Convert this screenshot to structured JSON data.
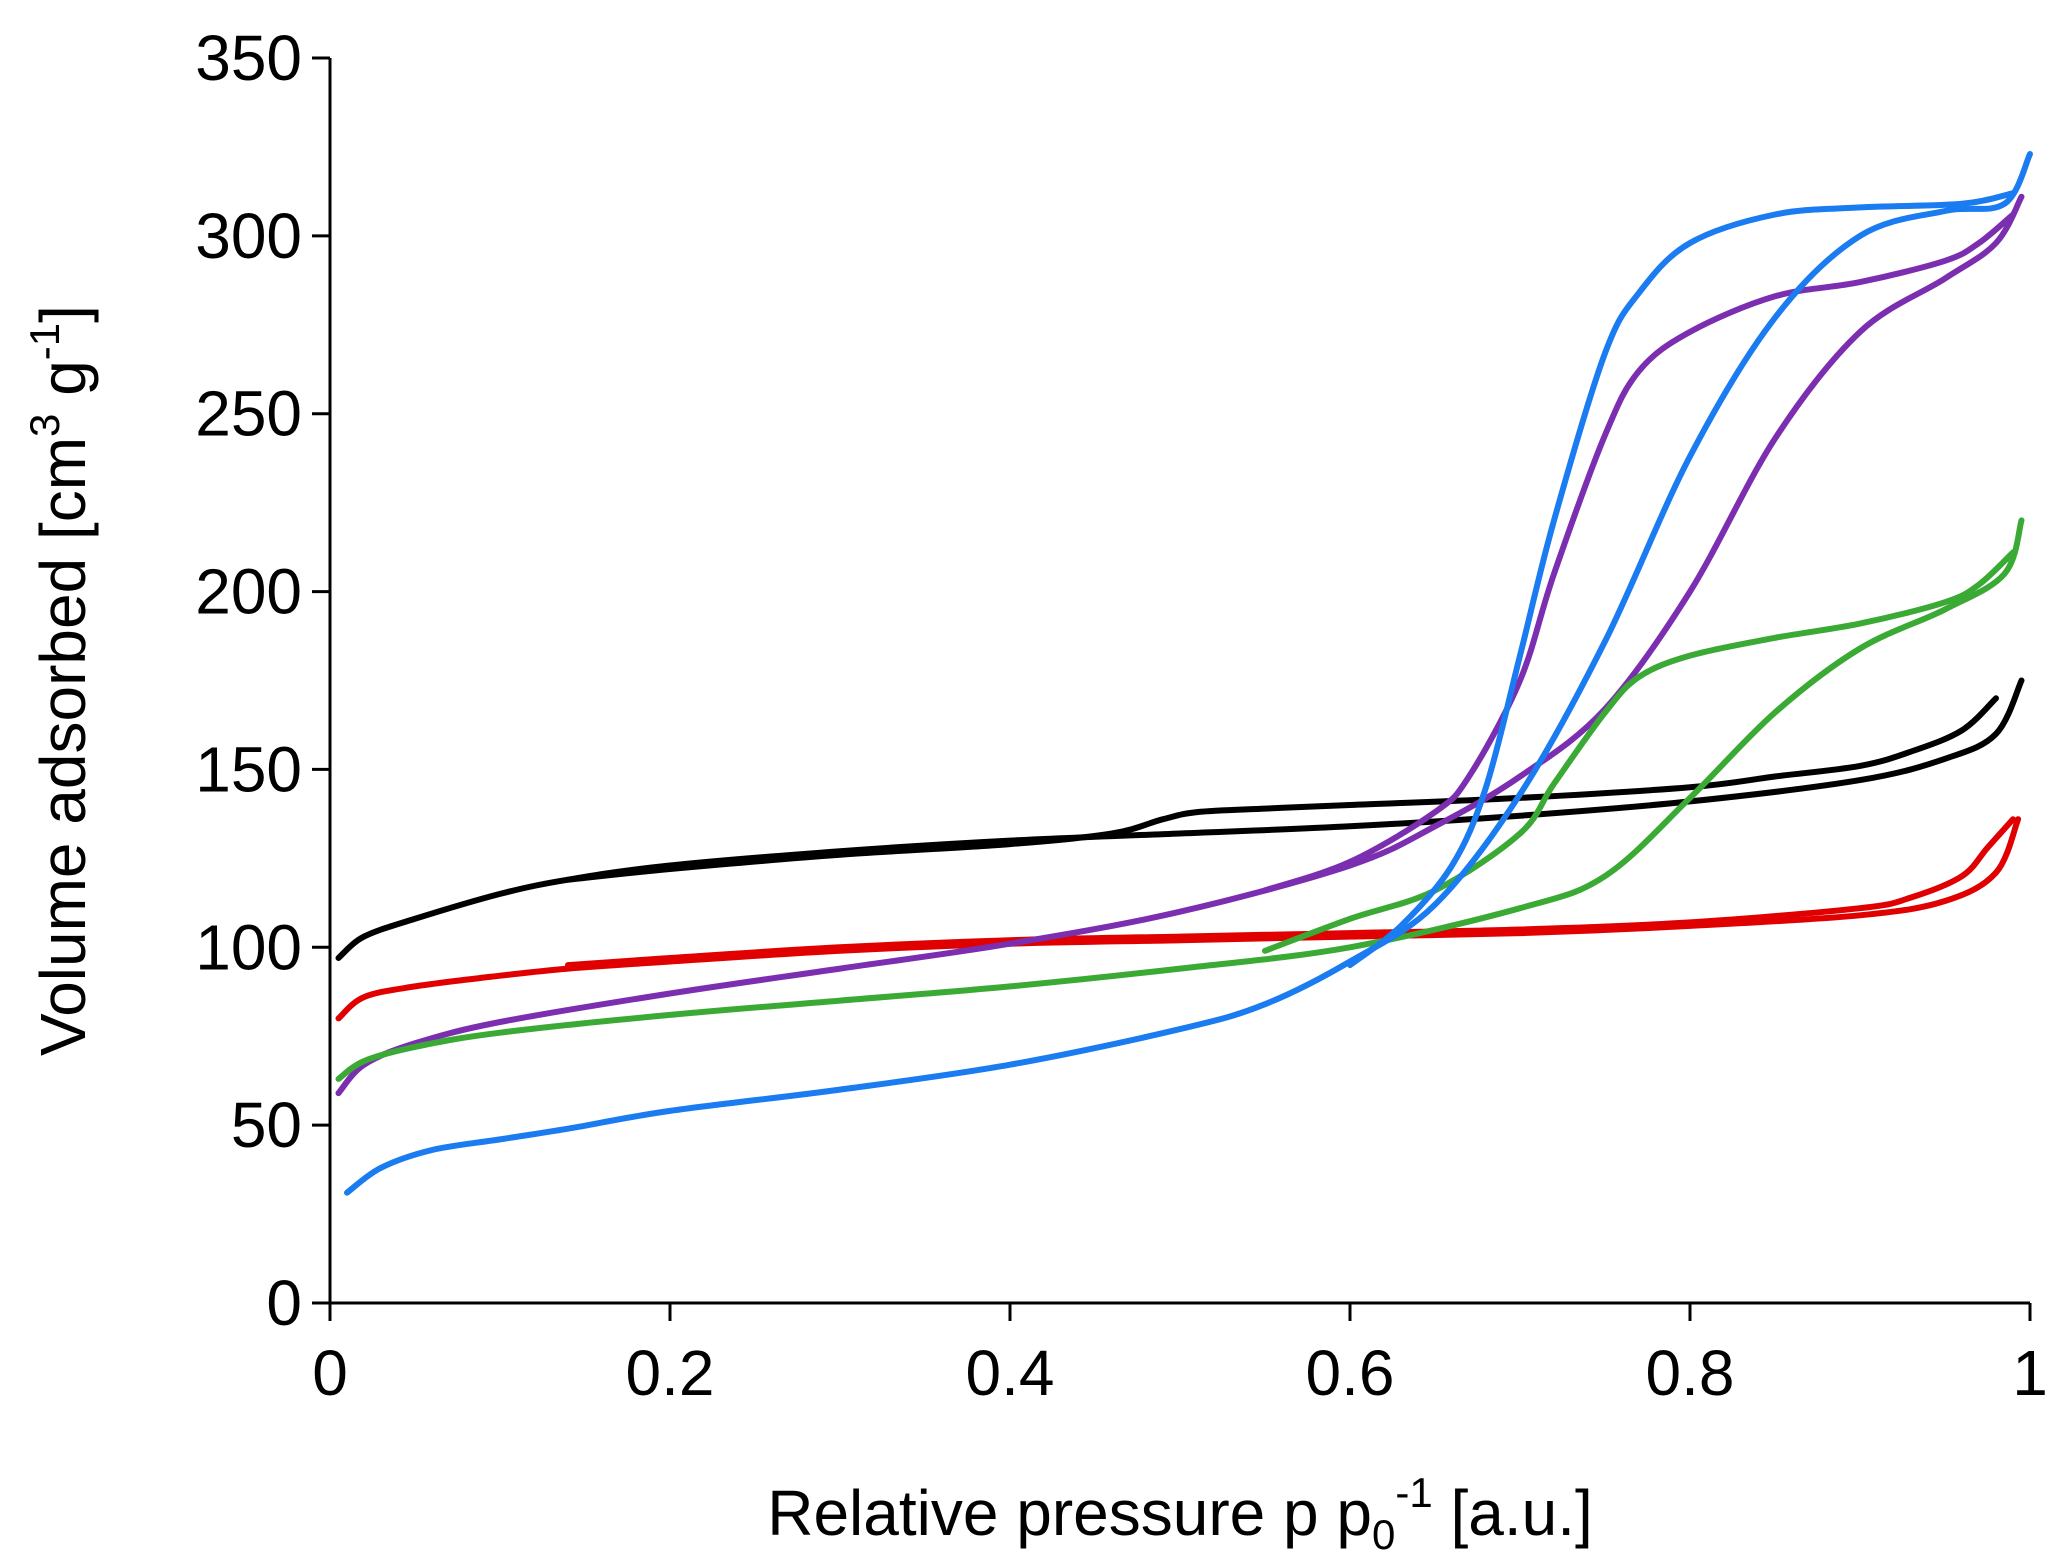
{
  "chart_data": {
    "type": "line",
    "title": "",
    "xlabel_parts": {
      "base": "Relative pressure p p",
      "sub": "0",
      "sup": "-1",
      "tail": " [a.u.]"
    },
    "ylabel_parts": {
      "base": "Volume adsorbed [cm",
      "sup1": "3",
      "mid": " g",
      "sup2": "-1",
      "tail": "]"
    },
    "xlim": [
      0,
      1
    ],
    "ylim": [
      0,
      350
    ],
    "xticks": [
      0,
      0.2,
      0.4,
      0.6,
      0.8,
      1
    ],
    "xtick_labels": [
      "0",
      "0.2",
      "0.4",
      "0.6",
      "0.8",
      "1"
    ],
    "yticks": [
      0,
      50,
      100,
      150,
      200,
      250,
      300,
      350
    ],
    "ytick_labels": [
      "0",
      "50",
      "100",
      "150",
      "200",
      "250",
      "300",
      "350"
    ],
    "grid": false,
    "legend": "none",
    "series": [
      {
        "name": "black",
        "color": "#000000",
        "adsorption": [
          [
            0.005,
            97
          ],
          [
            0.02,
            103
          ],
          [
            0.05,
            108
          ],
          [
            0.1,
            115
          ],
          [
            0.14,
            119
          ],
          [
            0.2,
            123
          ],
          [
            0.3,
            127
          ],
          [
            0.4,
            130
          ],
          [
            0.5,
            132
          ],
          [
            0.6,
            134
          ],
          [
            0.7,
            137
          ],
          [
            0.8,
            141
          ],
          [
            0.9,
            147
          ],
          [
            0.95,
            153
          ],
          [
            0.98,
            160
          ],
          [
            0.995,
            175
          ]
        ],
        "desorption": [
          [
            0.98,
            170
          ],
          [
            0.96,
            161
          ],
          [
            0.93,
            155
          ],
          [
            0.9,
            151
          ],
          [
            0.85,
            148
          ],
          [
            0.8,
            145
          ],
          [
            0.7,
            142
          ],
          [
            0.6,
            140
          ],
          [
            0.55,
            139
          ],
          [
            0.51,
            138
          ],
          [
            0.49,
            136
          ],
          [
            0.46,
            132
          ],
          [
            0.4,
            129
          ],
          [
            0.3,
            126
          ],
          [
            0.2,
            122
          ],
          [
            0.14,
            119
          ]
        ]
      },
      {
        "name": "red",
        "color": "#e00000",
        "adsorption": [
          [
            0.005,
            80
          ],
          [
            0.02,
            86
          ],
          [
            0.05,
            89
          ],
          [
            0.1,
            92
          ],
          [
            0.14,
            94
          ],
          [
            0.2,
            96
          ],
          [
            0.3,
            99
          ],
          [
            0.4,
            101
          ],
          [
            0.5,
            102
          ],
          [
            0.6,
            103
          ],
          [
            0.7,
            104
          ],
          [
            0.8,
            106
          ],
          [
            0.9,
            109
          ],
          [
            0.95,
            113
          ],
          [
            0.98,
            121
          ],
          [
            0.993,
            136
          ]
        ],
        "desorption": [
          [
            0.99,
            136
          ],
          [
            0.975,
            128
          ],
          [
            0.96,
            120
          ],
          [
            0.93,
            114
          ],
          [
            0.9,
            111
          ],
          [
            0.8,
            107
          ],
          [
            0.7,
            105
          ],
          [
            0.6,
            104
          ],
          [
            0.5,
            103
          ],
          [
            0.4,
            102
          ],
          [
            0.3,
            100
          ],
          [
            0.2,
            97
          ],
          [
            0.14,
            95
          ]
        ]
      },
      {
        "name": "purple",
        "color": "#7b2fb0",
        "adsorption": [
          [
            0.005,
            59
          ],
          [
            0.02,
            67
          ],
          [
            0.05,
            73
          ],
          [
            0.1,
            79
          ],
          [
            0.2,
            87
          ],
          [
            0.3,
            94
          ],
          [
            0.4,
            101
          ],
          [
            0.5,
            110
          ],
          [
            0.6,
            123
          ],
          [
            0.65,
            134
          ],
          [
            0.7,
            148
          ],
          [
            0.75,
            167
          ],
          [
            0.8,
            200
          ],
          [
            0.85,
            243
          ],
          [
            0.9,
            273
          ],
          [
            0.95,
            288
          ],
          [
            0.98,
            298
          ],
          [
            0.995,
            311
          ]
        ],
        "desorption": [
          [
            0.99,
            306
          ],
          [
            0.97,
            298
          ],
          [
            0.95,
            293
          ],
          [
            0.9,
            287
          ],
          [
            0.85,
            283
          ],
          [
            0.8,
            273
          ],
          [
            0.77,
            262
          ],
          [
            0.75,
            244
          ],
          [
            0.72,
            205
          ],
          [
            0.7,
            175
          ],
          [
            0.67,
            148
          ],
          [
            0.65,
            138
          ],
          [
            0.6,
            124
          ],
          [
            0.55,
            116
          ]
        ]
      },
      {
        "name": "green",
        "color": "#3aaa35",
        "adsorption": [
          [
            0.005,
            63
          ],
          [
            0.02,
            68
          ],
          [
            0.05,
            72
          ],
          [
            0.1,
            76
          ],
          [
            0.2,
            81
          ],
          [
            0.3,
            85
          ],
          [
            0.4,
            89
          ],
          [
            0.5,
            94
          ],
          [
            0.6,
            100
          ],
          [
            0.7,
            111
          ],
          [
            0.75,
            120
          ],
          [
            0.8,
            142
          ],
          [
            0.85,
            166
          ],
          [
            0.9,
            184
          ],
          [
            0.95,
            195
          ],
          [
            0.985,
            205
          ],
          [
            0.995,
            220
          ]
        ],
        "desorption": [
          [
            0.99,
            211
          ],
          [
            0.97,
            202
          ],
          [
            0.95,
            197
          ],
          [
            0.9,
            191
          ],
          [
            0.85,
            187
          ],
          [
            0.8,
            182
          ],
          [
            0.77,
            176
          ],
          [
            0.75,
            166
          ],
          [
            0.72,
            146
          ],
          [
            0.7,
            132
          ],
          [
            0.65,
            116
          ],
          [
            0.6,
            108
          ],
          [
            0.55,
            99
          ]
        ]
      },
      {
        "name": "blue",
        "color": "#1a7cf0",
        "adsorption": [
          [
            0.01,
            31
          ],
          [
            0.03,
            38
          ],
          [
            0.06,
            43
          ],
          [
            0.1,
            46
          ],
          [
            0.14,
            49
          ],
          [
            0.2,
            54
          ],
          [
            0.3,
            60
          ],
          [
            0.4,
            67
          ],
          [
            0.5,
            77
          ],
          [
            0.55,
            84
          ],
          [
            0.6,
            96
          ],
          [
            0.65,
            112
          ],
          [
            0.7,
            143
          ],
          [
            0.75,
            186
          ],
          [
            0.8,
            238
          ],
          [
            0.85,
            277
          ],
          [
            0.9,
            300
          ],
          [
            0.95,
            307
          ],
          [
            0.985,
            309
          ],
          [
            1.0,
            323
          ]
        ],
        "desorption": [
          [
            0.99,
            312
          ],
          [
            0.96,
            309
          ],
          [
            0.9,
            308
          ],
          [
            0.85,
            306
          ],
          [
            0.8,
            298
          ],
          [
            0.77,
            284
          ],
          [
            0.75,
            267
          ],
          [
            0.72,
            220
          ],
          [
            0.7,
            182
          ],
          [
            0.68,
            145
          ],
          [
            0.66,
            123
          ],
          [
            0.63,
            106
          ],
          [
            0.6,
            95
          ]
        ]
      }
    ]
  }
}
